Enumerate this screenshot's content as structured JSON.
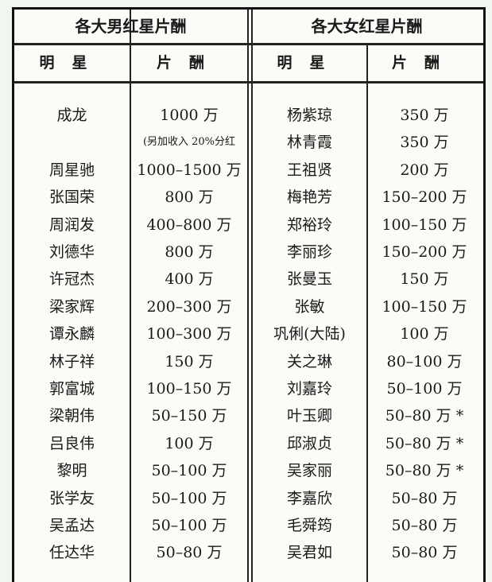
{
  "male": {
    "title": "各大男红星片酬",
    "col_star": "明星",
    "col_fee": "片酬",
    "rows": [
      {
        "star": "成龙",
        "fee": "1000 万"
      },
      {
        "star": "",
        "fee": "(另加收入 20%分红"
      },
      {
        "star": "周星驰",
        "fee": "1000–1500 万"
      },
      {
        "star": "张国荣",
        "fee": "800 万"
      },
      {
        "star": "周润发",
        "fee": "400–800 万"
      },
      {
        "star": "刘德华",
        "fee": "800 万"
      },
      {
        "star": "许冠杰",
        "fee": "400 万"
      },
      {
        "star": "梁家辉",
        "fee": "200–300 万"
      },
      {
        "star": "谭永麟",
        "fee": "100–300 万"
      },
      {
        "star": "林子祥",
        "fee": "150 万"
      },
      {
        "star": "郭富城",
        "fee": "100–150 万"
      },
      {
        "star": "梁朝伟",
        "fee": "50–150 万"
      },
      {
        "star": "吕良伟",
        "fee": "100 万"
      },
      {
        "star": "黎明",
        "fee": "50–100 万"
      },
      {
        "star": "张学友",
        "fee": "50–100 万"
      },
      {
        "star": "吴孟达",
        "fee": "50–100 万"
      },
      {
        "star": "任达华",
        "fee": "50–80 万"
      }
    ]
  },
  "female": {
    "title": "各大女红星片酬",
    "col_star": "明星",
    "col_fee": "片酬",
    "rows": [
      {
        "star": "杨紫琼",
        "fee": "350 万"
      },
      {
        "star": "林青霞",
        "fee": "350 万"
      },
      {
        "star": "王祖贤",
        "fee": "200 万"
      },
      {
        "star": "梅艳芳",
        "fee": "150–200 万"
      },
      {
        "star": "郑裕玲",
        "fee": "100–150 万"
      },
      {
        "star": "李丽珍",
        "fee": "150–200 万"
      },
      {
        "star": "张曼玉",
        "fee": "150 万"
      },
      {
        "star": "张敏",
        "fee": "100–150 万"
      },
      {
        "star": "巩俐(大陆)",
        "fee": "100 万"
      },
      {
        "star": "关之琳",
        "fee": "80–100 万"
      },
      {
        "star": "刘嘉玲",
        "fee": "50–100 万"
      },
      {
        "star": "叶玉卿",
        "fee": "50–80 万 *"
      },
      {
        "star": "邱淑贞",
        "fee": "50–80 万 *"
      },
      {
        "star": "吴家丽",
        "fee": "50–80 万 *"
      },
      {
        "star": "李嘉欣",
        "fee": "50–80 万"
      },
      {
        "star": "毛舜筠",
        "fee": "50–80 万"
      },
      {
        "star": "吴君如",
        "fee": "50–80 万"
      }
    ]
  }
}
